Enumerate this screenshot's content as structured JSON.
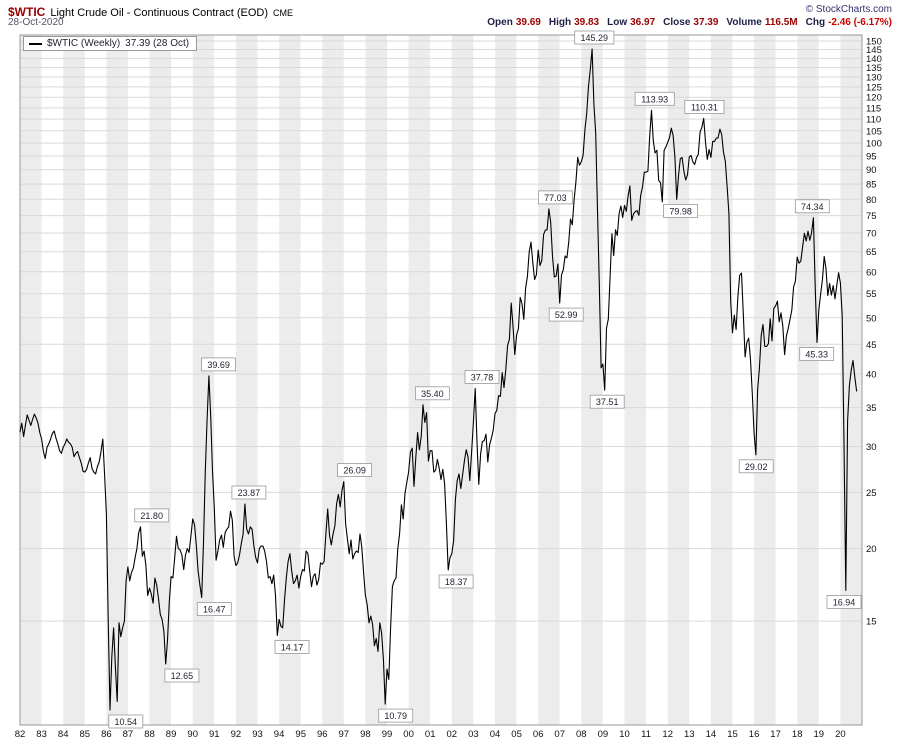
{
  "header": {
    "symbol": "$WTIC",
    "title": "Light Crude Oil - Continuous Contract (EOD)",
    "exchange": "CME",
    "date": "28-Oct-2020",
    "copyright": "© StockCharts.com",
    "quote": {
      "open_label": "Open",
      "open": "39.69",
      "high_label": "High",
      "high": "39.83",
      "low_label": "Low",
      "low": "36.97",
      "close_label": "Close",
      "close": "37.39",
      "volume_label": "Volume",
      "volume": "116.5M",
      "chg_label": "Chg",
      "chg": "-2.46 (-6.17%)"
    }
  },
  "legend": {
    "series_label": "$WTIC (Weekly)",
    "value": "37.39 (28 Oct)"
  },
  "chart_data": {
    "type": "line",
    "title": "$WTIC Light Crude Oil - Continuous Contract (EOD) CME",
    "xlabel": "",
    "ylabel": "",
    "y_scale": "log",
    "grid": true,
    "xlim": [
      1982,
      2021
    ],
    "ylim": [
      9.93,
      153.6
    ],
    "x_start_year": 1982,
    "points_per_year": 12,
    "x_axis_labels": [
      "82",
      "83",
      "84",
      "85",
      "86",
      "87",
      "88",
      "89",
      "90",
      "91",
      "92",
      "93",
      "94",
      "95",
      "96",
      "97",
      "98",
      "99",
      "00",
      "01",
      "02",
      "03",
      "04",
      "05",
      "06",
      "07",
      "08",
      "09",
      "10",
      "11",
      "12",
      "13",
      "14",
      "15",
      "16",
      "17",
      "18",
      "19",
      "20"
    ],
    "y_ticks": [
      15,
      20,
      25,
      30,
      35,
      40,
      45,
      50,
      55,
      60,
      65,
      70,
      75,
      80,
      85,
      90,
      95,
      100,
      105,
      110,
      115,
      120,
      125,
      130,
      135,
      140,
      145,
      150
    ],
    "series": [
      {
        "name": "$WTIC Weekly Close",
        "values": [
          31.8,
          32.9,
          31.2,
          32.6,
          34.0,
          33.3,
          32.6,
          33.4,
          34.1,
          33.6,
          32.9,
          31.7,
          30.9,
          29.4,
          28.6,
          29.9,
          30.3,
          30.9,
          31.6,
          31.9,
          31.0,
          30.3,
          29.5,
          29.2,
          29.9,
          30.3,
          30.9,
          30.5,
          30.3,
          29.9,
          28.8,
          29.2,
          29.4,
          28.7,
          28.1,
          27.2,
          27.1,
          27.4,
          28.1,
          28.7,
          27.5,
          27.1,
          26.9,
          27.7,
          28.2,
          29.4,
          30.9,
          26.8,
          22.9,
          15.1,
          10.54,
          13.0,
          14.6,
          12.5,
          10.9,
          14.9,
          14.1,
          14.6,
          15.0,
          17.6,
          18.6,
          17.6,
          18.2,
          18.5,
          19.3,
          20.0,
          21.3,
          21.8,
          19.4,
          19.8,
          18.7,
          16.6,
          17.1,
          16.7,
          16.1,
          17.8,
          17.3,
          16.4,
          15.4,
          15.1,
          14.4,
          12.65,
          13.9,
          16.2,
          17.9,
          17.8,
          19.3,
          21.0,
          20.0,
          19.9,
          19.5,
          18.4,
          19.5,
          20.0,
          19.7,
          21.0,
          22.5,
          22.0,
          20.3,
          18.3,
          17.3,
          16.47,
          20.5,
          27.2,
          33.4,
          39.69,
          33.8,
          27.2,
          23.5,
          19.1,
          19.8,
          20.7,
          21.1,
          20.1,
          21.3,
          21.6,
          21.8,
          23.2,
          22.4,
          19.4,
          18.7,
          18.9,
          19.5,
          20.4,
          21.2,
          23.87,
          21.6,
          21.2,
          21.8,
          21.6,
          20.2,
          19.3,
          18.9,
          20.0,
          20.2,
          20.2,
          19.8,
          19.0,
          17.8,
          17.9,
          17.4,
          18.0,
          16.6,
          14.17,
          15.1,
          14.7,
          14.6,
          16.3,
          17.8,
          19.0,
          19.6,
          18.3,
          17.4,
          17.6,
          18.0,
          17.1,
          17.9,
          18.4,
          18.3,
          19.8,
          19.6,
          18.3,
          17.2,
          17.9,
          18.1,
          17.3,
          17.7,
          18.9,
          18.8,
          19.0,
          21.2,
          23.4,
          21.1,
          20.3,
          21.2,
          21.9,
          23.9,
          24.8,
          23.6,
          25.2,
          26.09,
          22.1,
          20.8,
          19.6,
          20.7,
          19.2,
          19.6,
          19.8,
          19.7,
          21.2,
          20.1,
          18.2,
          16.6,
          16.0,
          14.9,
          15.3,
          14.8,
          13.6,
          14.0,
          13.3,
          14.9,
          14.3,
          12.9,
          10.79,
          12.4,
          11.9,
          14.6,
          17.2,
          17.6,
          17.8,
          20.0,
          21.2,
          23.8,
          22.5,
          24.9,
          26.0,
          27.1,
          29.3,
          29.8,
          25.6,
          28.7,
          31.7,
          29.6,
          31.2,
          35.4,
          33.0,
          34.3,
          28.3,
          29.5,
          29.5,
          27.1,
          27.3,
          28.5,
          27.5,
          26.3,
          27.4,
          25.9,
          22.1,
          18.37,
          19.3,
          19.6,
          20.6,
          24.3,
          26.2,
          26.9,
          25.4,
          26.8,
          28.3,
          29.6,
          28.8,
          26.2,
          29.3,
          33.0,
          37.78,
          30.5,
          25.8,
          29.1,
          30.6,
          30.7,
          31.5,
          28.2,
          30.2,
          31.0,
          32.0,
          34.2,
          34.6,
          36.7,
          36.6,
          40.2,
          37.9,
          40.7,
          44.8,
          45.9,
          53.0,
          48.4,
          43.2,
          46.7,
          47.9,
          54.2,
          52.9,
          49.7,
          56.2,
          58.9,
          64.9,
          67.5,
          62.2,
          58.2,
          59.3,
          65.4,
          61.5,
          62.8,
          69.6,
          70.8,
          70.9,
          77.03,
          73.0,
          63.8,
          58.8,
          59.0,
          61.9,
          52.99,
          59.2,
          60.5,
          63.9,
          63.4,
          67.4,
          74.0,
          72.3,
          79.8,
          85.7,
          94.5,
          91.6,
          92.9,
          95.3,
          105.4,
          112.5,
          125.3,
          134.0,
          145.29,
          116.6,
          104.0,
          76.6,
          57.2,
          41.0,
          41.6,
          37.51,
          48.0,
          49.7,
          58.9,
          69.8,
          64.0,
          70.9,
          69.3,
          75.6,
          77.9,
          74.4,
          78.1,
          76.3,
          81.1,
          84.4,
          73.6,
          75.5,
          76.2,
          76.5,
          75.1,
          81.3,
          84.0,
          89.1,
          89.1,
          89.5,
          102.8,
          113.93,
          100.8,
          96.2,
          97.2,
          86.2,
          85.5,
          79.2,
          97.1,
          98.5,
          100.2,
          102.2,
          106.1,
          103.2,
          94.6,
          79.98,
          87.8,
          94.0,
          94.5,
          89.4,
          86.4,
          88.2,
          94.7,
          95.2,
          92.8,
          91.9,
          94.4,
          95.7,
          104.6,
          106.5,
          110.31,
          100.4,
          93.8,
          97.5,
          94.5,
          100.7,
          100.7,
          102.0,
          102.1,
          105.7,
          103.5,
          96.4,
          93.1,
          84.3,
          75.7,
          53.3,
          47.1,
          50.5,
          47.7,
          54.4,
          59.2,
          59.7,
          50.8,
          42.8,
          45.4,
          46.1,
          42.3,
          37.0,
          31.6,
          29.02,
          37.5,
          40.9,
          46.6,
          48.7,
          44.6,
          44.6,
          45.1,
          49.8,
          45.6,
          51.9,
          52.4,
          53.4,
          49.2,
          51.0,
          48.4,
          43.2,
          46.5,
          47.9,
          49.7,
          51.5,
          56.5,
          57.8,
          63.6,
          62.1,
          62.6,
          66.2,
          69.9,
          67.8,
          70.5,
          68.0,
          70.1,
          74.34,
          56.6,
          45.33,
          51.5,
          54.9,
          58.1,
          63.8,
          60.7,
          54.6,
          57.3,
          54.7,
          56.8,
          53.9,
          56.9,
          59.8,
          57.4,
          50.4,
          30.4,
          16.94,
          33.2,
          38.2,
          40.6,
          42.2,
          39.5,
          37.39
        ]
      }
    ],
    "annotations": [
      {
        "label": "10.54",
        "t": 1986.9,
        "price": 10.54,
        "side": "below"
      },
      {
        "label": "21.80",
        "t": 1988.1,
        "price": 21.8,
        "side": "above"
      },
      {
        "label": "12.65",
        "t": 1989.5,
        "price": 12.65,
        "side": "below"
      },
      {
        "label": "16.47",
        "t": 1991.0,
        "price": 16.47,
        "side": "below"
      },
      {
        "label": "39.69",
        "t": 1991.2,
        "price": 39.69,
        "side": "above"
      },
      {
        "label": "23.87",
        "t": 1992.6,
        "price": 23.87,
        "side": "above"
      },
      {
        "label": "14.17",
        "t": 1994.6,
        "price": 14.17,
        "side": "below"
      },
      {
        "label": "26.09",
        "t": 1997.5,
        "price": 26.09,
        "side": "above"
      },
      {
        "label": "10.79",
        "t": 1999.4,
        "price": 10.79,
        "side": "below"
      },
      {
        "label": "35.40",
        "t": 2001.1,
        "price": 35.4,
        "side": "above"
      },
      {
        "label": "18.37",
        "t": 2002.2,
        "price": 18.37,
        "side": "below"
      },
      {
        "label": "37.78",
        "t": 2003.4,
        "price": 37.78,
        "side": "above"
      },
      {
        "label": "77.03",
        "t": 2006.8,
        "price": 77.03,
        "side": "above"
      },
      {
        "label": "52.99",
        "t": 2007.3,
        "price": 52.99,
        "side": "below"
      },
      {
        "label": "145.29",
        "t": 2008.6,
        "price": 145.29,
        "side": "above"
      },
      {
        "label": "37.51",
        "t": 2009.2,
        "price": 37.51,
        "side": "below"
      },
      {
        "label": "113.93",
        "t": 2011.4,
        "price": 113.93,
        "side": "above"
      },
      {
        "label": "79.98",
        "t": 2012.6,
        "price": 79.98,
        "side": "below"
      },
      {
        "label": "110.31",
        "t": 2013.7,
        "price": 110.31,
        "side": "above"
      },
      {
        "label": "29.02",
        "t": 2016.1,
        "price": 29.02,
        "side": "below"
      },
      {
        "label": "74.34",
        "t": 2018.7,
        "price": 74.34,
        "side": "above"
      },
      {
        "label": "45.33",
        "t": 2018.9,
        "price": 45.33,
        "side": "below"
      },
      {
        "label": "16.94",
        "t": 2020.3,
        "price": 16.94,
        "side": "below"
      }
    ],
    "colors": {
      "line": "#000000",
      "band": "#ececec",
      "band_alt": "#ffffff",
      "grid": "#d9d9d9",
      "border": "#999999",
      "axis_text": "#111111",
      "annotation_text": "#222233",
      "annotation_border": "#999999",
      "header_value_maroon": "#990000",
      "header_label_navy": "#1e1e46",
      "negative_red": "#cc0000"
    }
  }
}
